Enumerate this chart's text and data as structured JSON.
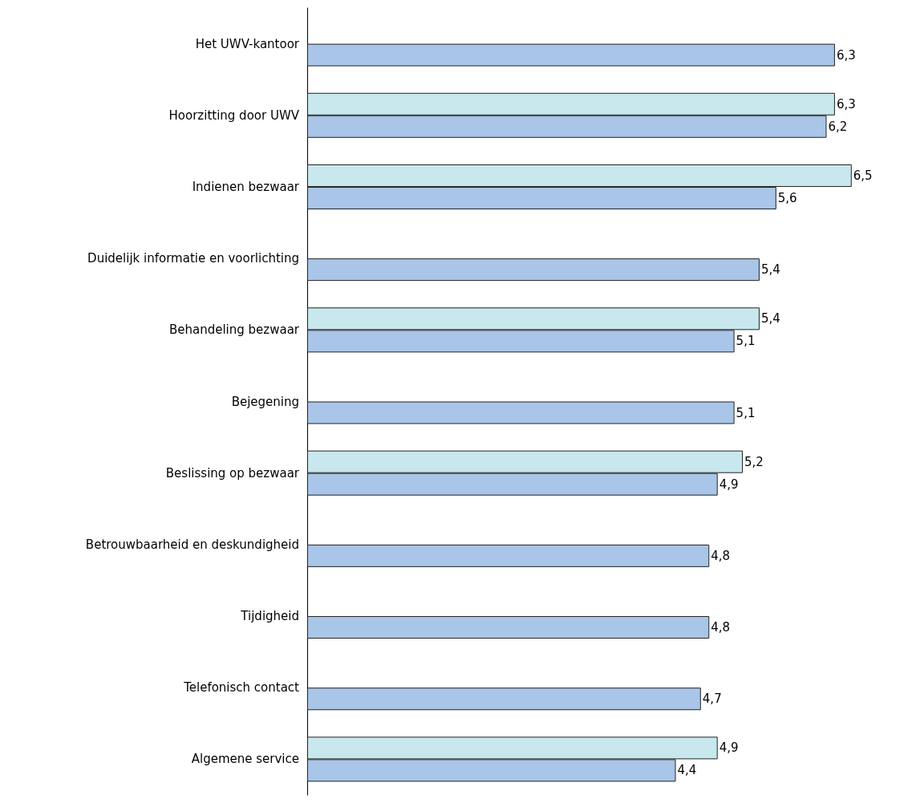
{
  "chart_data": {
    "type": "bar",
    "orientation": "horizontal",
    "categories": [
      "Het UWV-kantoor",
      "Hoorzitting door UWV",
      "Indienen bezwaar",
      "Duidelijk informatie en voorlichting",
      "Behandeling bezwaar",
      "Bejegening",
      "Beslissing op bezwaar",
      "Betrouwbaarheid en deskundigheid",
      "Tijdigheid",
      "Telefonisch contact",
      "Algemene service"
    ],
    "series": [
      {
        "color": "#c8e8ee",
        "values": [
          null,
          6.3,
          6.5,
          null,
          5.4,
          null,
          5.2,
          null,
          null,
          null,
          4.9
        ],
        "value_labels": [
          null,
          "6,3",
          "6,5",
          null,
          "5,4",
          null,
          "5,2",
          null,
          null,
          null,
          "4,9"
        ]
      },
      {
        "color": "#a9c5e7",
        "values": [
          6.3,
          6.2,
          5.6,
          5.4,
          5.1,
          5.1,
          4.9,
          4.8,
          4.8,
          4.7,
          4.4
        ],
        "value_labels": [
          "6,3",
          "6,2",
          "5,6",
          "5,4",
          "5,1",
          "5,1",
          "4,9",
          "4,8",
          "4,8",
          "4,7",
          "4,4"
        ]
      }
    ],
    "tick_labels": "y",
    "grid": false
  }
}
